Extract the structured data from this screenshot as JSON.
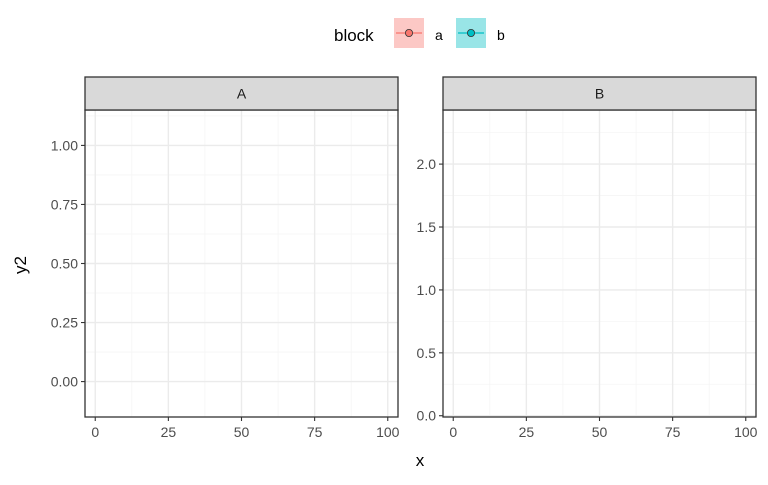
{
  "chart_data": {
    "type": "line",
    "xlabel": "x",
    "ylabel": "y2",
    "legend": {
      "title": "block",
      "position": "top",
      "entries": [
        {
          "label": "a",
          "color": "#F8766D",
          "fill": "#F8766D"
        },
        {
          "label": "b",
          "color": "#00BFC4",
          "fill": "#00BFC4"
        }
      ]
    },
    "facets": [
      {
        "strip": "A",
        "xlim": [
          -3.5,
          103.5
        ],
        "ylim": [
          -0.15,
          1.15
        ],
        "x_ticks": [
          0,
          25,
          50,
          75,
          100
        ],
        "x_tick_labels": [
          "0",
          "25",
          "50",
          "75",
          "100"
        ],
        "y_ticks": [
          0,
          0.25,
          0.5,
          0.75,
          1
        ],
        "y_tick_labels": [
          "0.00",
          "0.25",
          "0.50",
          "0.75",
          "1.00"
        ],
        "series": []
      },
      {
        "strip": "B",
        "xlim": [
          -3.5,
          103.5
        ],
        "ylim": [
          -0.01,
          2.43
        ],
        "x_ticks": [
          0,
          25,
          50,
          75,
          100
        ],
        "x_tick_labels": [
          "0",
          "25",
          "50",
          "75",
          "100"
        ],
        "y_ticks": [
          0,
          0.5,
          1,
          1.5,
          2
        ],
        "y_tick_labels": [
          "0.0",
          "0.5",
          "1.0",
          "1.5",
          "2.0"
        ],
        "series": []
      }
    ],
    "grid": true
  },
  "colors": {
    "strip_bg": "#D9D9D9",
    "grid_major": "#EBEBEB",
    "grid_minor": "#F5F5F5",
    "panel_border": "#333333"
  }
}
